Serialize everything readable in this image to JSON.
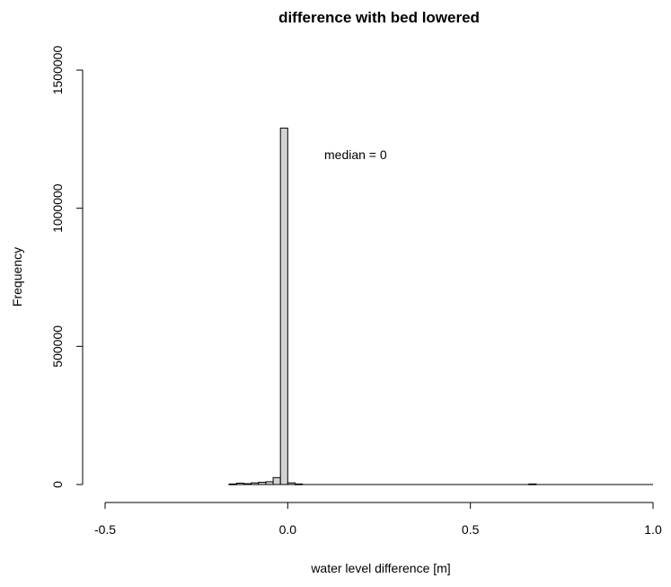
{
  "chart_data": {
    "type": "bar",
    "title": "difference with bed lowered",
    "xlabel": "water level difference [m]",
    "ylabel": "Frequency",
    "annotation": "median = 0",
    "x_range": [
      -0.5,
      1.0
    ],
    "ylim": [
      0,
      1500000
    ],
    "x_ticks": [
      {
        "value": -0.5,
        "label": "-0.5"
      },
      {
        "value": 0.0,
        "label": "0.0"
      },
      {
        "value": 0.5,
        "label": "0.5"
      },
      {
        "value": 1.0,
        "label": "1.0"
      }
    ],
    "y_ticks": [
      {
        "value": 0,
        "label": "0"
      },
      {
        "value": 500000,
        "label": "500000"
      },
      {
        "value": 1000000,
        "label": "1000000"
      },
      {
        "value": 1500000,
        "label": "1500000"
      }
    ],
    "bins": [
      {
        "start": -0.16,
        "end": -0.14,
        "value": 2000
      },
      {
        "start": -0.14,
        "end": -0.12,
        "value": 5000
      },
      {
        "start": -0.12,
        "end": -0.1,
        "value": 3000
      },
      {
        "start": -0.1,
        "end": -0.08,
        "value": 6000
      },
      {
        "start": -0.08,
        "end": -0.06,
        "value": 8000
      },
      {
        "start": -0.06,
        "end": -0.04,
        "value": 10000
      },
      {
        "start": -0.04,
        "end": -0.02,
        "value": 25000
      },
      {
        "start": -0.02,
        "end": 0.0,
        "value": 1290000
      },
      {
        "start": 0.0,
        "end": 0.02,
        "value": 6000
      },
      {
        "start": 0.02,
        "end": 0.04,
        "value": 2000
      },
      {
        "start": 0.66,
        "end": 0.68,
        "value": 2000
      }
    ],
    "bar_fill": "#d3d3d3",
    "bar_stroke": "#000000",
    "grid": false,
    "legend": "none"
  }
}
